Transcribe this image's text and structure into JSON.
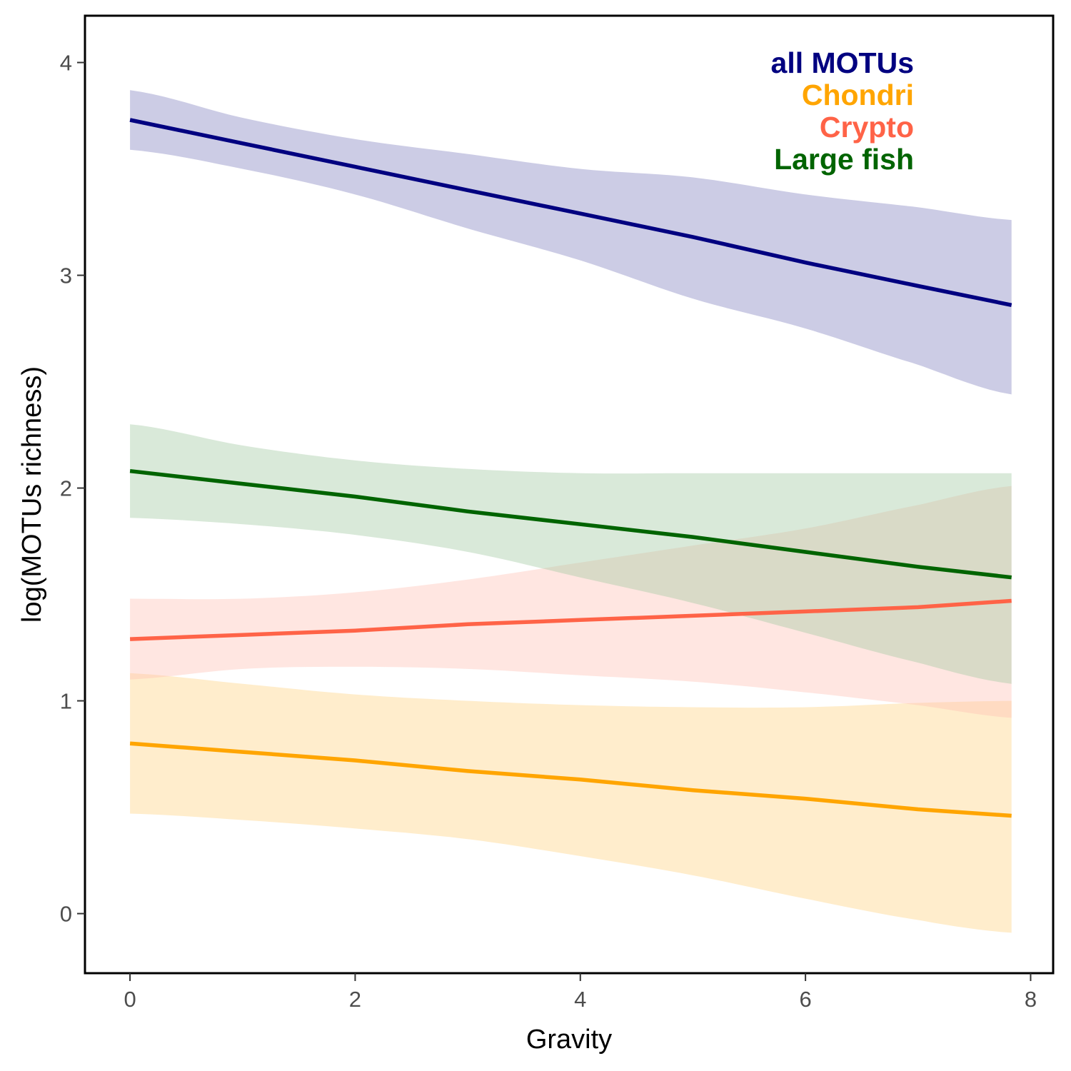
{
  "chart_data": {
    "type": "line",
    "title": "",
    "xlabel": "Gravity",
    "ylabel": "log(MOTUs richness)",
    "xlim": [
      -0.4,
      8.2
    ],
    "ylim": [
      -0.28,
      4.22
    ],
    "xticks": [
      0,
      2,
      4,
      6,
      8
    ],
    "yticks": [
      0,
      1,
      2,
      3,
      4
    ],
    "grid": false,
    "legend_position": "top-right",
    "series": [
      {
        "name": "all MOTUs",
        "color": "#000080",
        "band_color": "#7f7fbf",
        "x": [
          0,
          1,
          2,
          3,
          4,
          5,
          6,
          7,
          7.83
        ],
        "y": [
          3.73,
          3.62,
          3.51,
          3.4,
          3.29,
          3.18,
          3.06,
          2.95,
          2.86
        ],
        "lower": [
          3.59,
          3.5,
          3.38,
          3.22,
          3.07,
          2.89,
          2.75,
          2.58,
          2.44
        ],
        "upper": [
          3.87,
          3.74,
          3.64,
          3.57,
          3.5,
          3.46,
          3.38,
          3.32,
          3.26
        ]
      },
      {
        "name": "Chondri",
        "color": "#ffa500",
        "band_color": "#ffd27f",
        "x": [
          0,
          1,
          2,
          3,
          4,
          5,
          6,
          7,
          7.83
        ],
        "y": [
          0.8,
          0.76,
          0.72,
          0.67,
          0.63,
          0.58,
          0.54,
          0.49,
          0.46
        ],
        "lower": [
          0.47,
          0.44,
          0.4,
          0.35,
          0.27,
          0.18,
          0.07,
          -0.03,
          -0.09
        ],
        "upper": [
          1.13,
          1.08,
          1.03,
          1.0,
          0.98,
          0.97,
          0.97,
          0.99,
          1.0
        ]
      },
      {
        "name": "Crypto",
        "color": "#ff6347",
        "band_color": "#ffc0b5",
        "x": [
          0,
          1,
          2,
          3,
          4,
          5,
          6,
          7,
          7.83
        ],
        "y": [
          1.29,
          1.31,
          1.33,
          1.36,
          1.38,
          1.4,
          1.42,
          1.44,
          1.47
        ],
        "lower": [
          1.1,
          1.15,
          1.16,
          1.15,
          1.12,
          1.09,
          1.04,
          0.98,
          0.92
        ],
        "upper": [
          1.48,
          1.48,
          1.51,
          1.57,
          1.65,
          1.73,
          1.81,
          1.92,
          2.01
        ]
      },
      {
        "name": "Large fish",
        "color": "#006400",
        "band_color": "#9fc79f",
        "x": [
          0,
          1,
          2,
          3,
          4,
          5,
          6,
          7,
          7.83
        ],
        "y": [
          2.08,
          2.02,
          1.96,
          1.89,
          1.83,
          1.77,
          1.7,
          1.63,
          1.58
        ],
        "lower": [
          1.86,
          1.83,
          1.78,
          1.7,
          1.58,
          1.46,
          1.32,
          1.18,
          1.08
        ],
        "upper": [
          2.3,
          2.2,
          2.13,
          2.09,
          2.07,
          2.07,
          2.07,
          2.07,
          2.07
        ]
      }
    ]
  }
}
